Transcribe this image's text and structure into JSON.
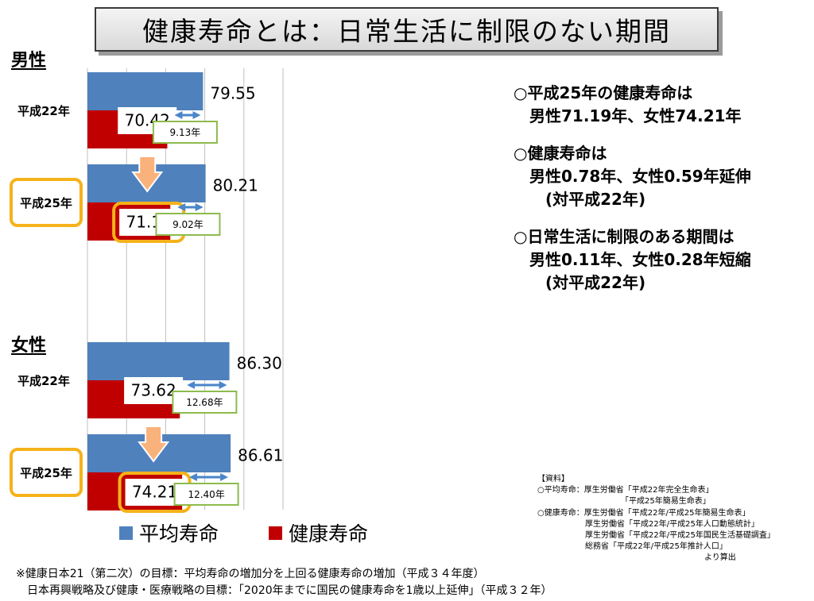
{
  "title": "健康寿命とは：日常生活に制限のない期間",
  "colors": {
    "average": "#4f81bd",
    "healthy": "#c00000",
    "arrow": "#4a86c8",
    "highlight": "#f5b21a",
    "gap_border": "#8dbb4d",
    "down_arrow": "#f9b27b"
  },
  "chart_data": {
    "type": "bar",
    "orientation": "horizontal",
    "xlim": [
      0,
      100
    ],
    "grid": true,
    "legend_placement": "bottom-left",
    "series_legend": [
      {
        "name": "平均寿命",
        "color": "#4f81bd"
      },
      {
        "name": "健康寿命",
        "color": "#c00000"
      }
    ],
    "groups": [
      {
        "gender": "男性",
        "rows": [
          {
            "year": "平成22年",
            "highlight": false,
            "average": 79.55,
            "average_label": "79.55",
            "healthy": 70.42,
            "healthy_label": "70.42",
            "gap_label": "9.13年"
          },
          {
            "year": "平成25年",
            "highlight": true,
            "average": 80.21,
            "average_label": "80.21",
            "healthy": 71.19,
            "healthy_label": "71.19",
            "gap_label": "9.02年"
          }
        ]
      },
      {
        "gender": "女性",
        "rows": [
          {
            "year": "平成22年",
            "highlight": false,
            "average": 86.3,
            "average_label": "86.30",
            "healthy": 73.62,
            "healthy_label": "73.62",
            "gap_label": "12.68年"
          },
          {
            "year": "平成25年",
            "highlight": true,
            "average": 86.61,
            "average_label": "86.61",
            "healthy": 74.21,
            "healthy_label": "74.21",
            "gap_label": "12.40年"
          }
        ]
      }
    ]
  },
  "notes": [
    [
      "○平成25年の健康寿命は",
      "　男性71.19年、女性74.21年"
    ],
    [
      "○健康寿命は",
      "　男性0.78年、女性0.59年延伸",
      "　　(対平成22年)"
    ],
    [
      "○日常生活に制限のある期間は",
      "　男性0.11年、女性0.28年短縮",
      "　　(対平成22年)"
    ]
  ],
  "source_text": "【資料】\n○平均寿命：厚生労働省「平成22年完全生命表」\n　　　　　　　　　　　「平成25年簡易生命表」\n○健康寿命：厚生労働省「平成22年/平成25年簡易生命表」\n　　　　　　厚生労働省「平成22年/平成25年人口動態統計」\n　　　　　　厚生労働省「平成22年/平成25年国民生活基礎調査」\n　　　　　　総務省「平成22年/平成25年推計人口」\n　　　　　　　　　　　　　　　　　　　　　より算出",
  "footer": [
    "※健康日本21（第二次）の目標：平均寿命の増加分を上回る健康寿命の増加（平成３４年度）",
    "　日本再興戦略及び健康・医療戦略の目標：「2020年までに国民の健康寿命を1歳以上延伸」（平成３２年）"
  ]
}
